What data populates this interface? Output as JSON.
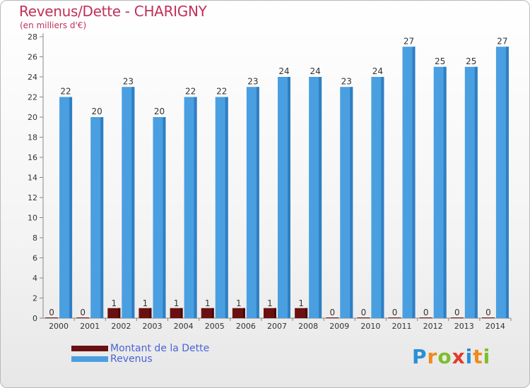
{
  "chart_data": {
    "type": "bar",
    "title": "Revenus/Dette - CHARIGNY",
    "subtitle": "(en milliers d'€)",
    "categories": [
      "2000",
      "2001",
      "2002",
      "2003",
      "2004",
      "2005",
      "2006",
      "2007",
      "2008",
      "2009",
      "2010",
      "2011",
      "2012",
      "2013",
      "2014"
    ],
    "series": [
      {
        "name": "Montant de la Dette",
        "color": "#6b1010",
        "values": [
          0,
          0,
          1,
          1,
          1,
          1,
          1,
          1,
          1,
          0,
          0,
          0,
          0,
          0,
          0
        ]
      },
      {
        "name": "Revenus",
        "color": "#4a9fe0",
        "values": [
          22,
          20,
          23,
          20,
          22,
          22,
          23,
          24,
          24,
          23,
          24,
          27,
          25,
          25,
          27
        ]
      }
    ],
    "ylim": [
      0,
      28
    ],
    "yticks": [
      0,
      2,
      4,
      6,
      8,
      10,
      12,
      14,
      16,
      18,
      20,
      22,
      24,
      26,
      28
    ],
    "grid": false,
    "legend": "bottom-left"
  },
  "logo": {
    "text": "Proxiti",
    "letters": [
      {
        "ch": "P",
        "color": "#2a8fd6"
      },
      {
        "ch": "r",
        "color": "#f08a1a"
      },
      {
        "ch": "o",
        "color": "#7cbf2a"
      },
      {
        "ch": "x",
        "color": "#e23a2a"
      },
      {
        "ch": "i",
        "color": "#2a8fd6"
      },
      {
        "ch": "t",
        "color": "#f08a1a"
      },
      {
        "ch": "i",
        "color": "#7cbf2a"
      }
    ]
  }
}
